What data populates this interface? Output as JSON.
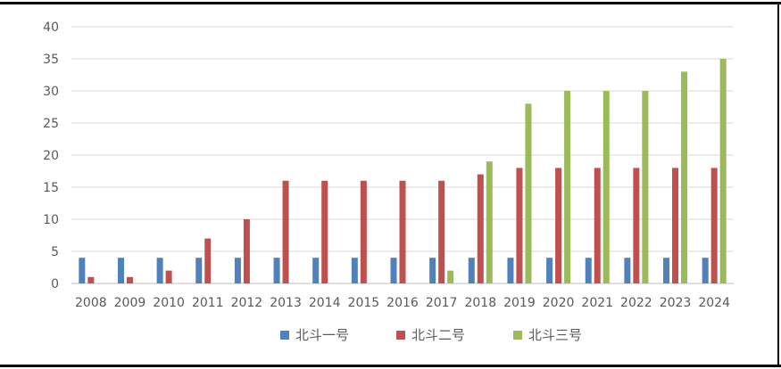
{
  "chart_data": {
    "type": "bar",
    "categories": [
      "2008",
      "2009",
      "2010",
      "2011",
      "2012",
      "2013",
      "2014",
      "2015",
      "2016",
      "2017",
      "2018",
      "2019",
      "2020",
      "2021",
      "2022",
      "2023",
      "2024"
    ],
    "series": [
      {
        "name": "北斗一号",
        "color": "#4f81bd",
        "values": [
          4,
          4,
          4,
          4,
          4,
          4,
          4,
          4,
          4,
          4,
          4,
          4,
          4,
          4,
          4,
          4,
          4
        ]
      },
      {
        "name": "北斗二号",
        "color": "#c0504d",
        "values": [
          1,
          1,
          2,
          7,
          10,
          16,
          16,
          16,
          16,
          16,
          17,
          18,
          18,
          18,
          18,
          18,
          18
        ]
      },
      {
        "name": "北斗三号",
        "color": "#9bbb59",
        "values": [
          0,
          0,
          0,
          0,
          0,
          0,
          0,
          0,
          0,
          2,
          19,
          28,
          30,
          30,
          30,
          33,
          35
        ]
      }
    ],
    "yticks": [
      "0",
      "5",
      "10",
      "15",
      "20",
      "25",
      "30",
      "35",
      "40"
    ],
    "ylim": [
      0,
      40
    ],
    "grid": true,
    "legend_position": "bottom"
  }
}
